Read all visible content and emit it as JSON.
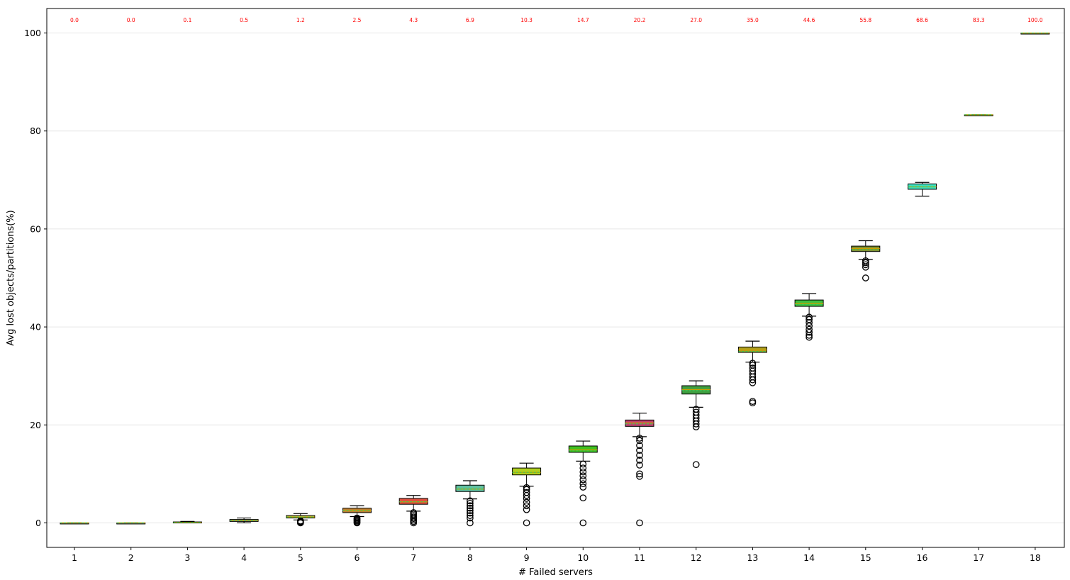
{
  "chart_data": {
    "type": "box",
    "xlabel": "# Failed servers",
    "ylabel": "Avg lost objects/partitions(%)",
    "ylim": [
      -5,
      105
    ],
    "yticks": [
      0,
      20,
      40,
      60,
      80,
      100
    ],
    "grid": "horizontal",
    "categories": [
      "1",
      "2",
      "3",
      "4",
      "5",
      "6",
      "7",
      "8",
      "9",
      "10",
      "11",
      "12",
      "13",
      "14",
      "15",
      "16",
      "17",
      "18"
    ],
    "mean_labels": [
      "0.0",
      "0.0",
      "0.1",
      "0.5",
      "1.2",
      "2.5",
      "4.3",
      "6.9",
      "10.3",
      "14.7",
      "20.2",
      "27.0",
      "35.0",
      "44.6",
      "55.8",
      "68.6",
      "83.3",
      "100.0"
    ],
    "boxes": [
      {
        "whislo": 0.0,
        "q1": 0.0,
        "med": 0.0,
        "mean": 0.0,
        "q3": 0.0,
        "whishi": 0.0,
        "fill": "#8a9a7a",
        "median_color": "#c8a000",
        "fliers": []
      },
      {
        "whislo": 0.0,
        "q1": 0.0,
        "med": 0.0,
        "mean": 0.0,
        "q3": 0.0,
        "whishi": 0.0,
        "fill": "#7aa0a8",
        "median_color": "#c8a000",
        "fliers": []
      },
      {
        "whislo": 0.0,
        "q1": 0.0,
        "med": 0.1,
        "mean": 0.1,
        "q3": 0.2,
        "whishi": 0.3,
        "fill": "#9a9a30",
        "median_color": "#c8a000",
        "fliers": []
      },
      {
        "whislo": 0.0,
        "q1": 0.3,
        "med": 0.5,
        "mean": 0.5,
        "q3": 0.7,
        "whishi": 1.0,
        "fill": "#c0a070",
        "median_color": "#c8a000",
        "fliers": []
      },
      {
        "whislo": 0.6,
        "q1": 1.0,
        "med": 1.2,
        "mean": 1.2,
        "q3": 1.5,
        "whishi": 1.9,
        "fill": "#d0c040",
        "median_color": "#c8a000",
        "fliers": [
          0.0,
          0.1,
          0.2,
          0.3,
          0.4
        ]
      },
      {
        "whislo": 1.3,
        "q1": 2.1,
        "med": 2.5,
        "mean": 2.5,
        "q3": 3.0,
        "whishi": 3.5,
        "fill": "#c08030",
        "median_color": "#c8a000",
        "fliers": [
          0.0,
          0.2,
          0.4,
          0.6,
          0.8,
          1.0
        ]
      },
      {
        "whislo": 2.4,
        "q1": 3.8,
        "med": 4.3,
        "mean": 4.3,
        "q3": 5.0,
        "whishi": 5.6,
        "fill": "#e05040",
        "median_color": "#c8a000",
        "fliers": [
          0.0,
          0.3,
          0.6,
          0.9,
          1.2,
          1.5,
          1.8,
          2.1
        ]
      },
      {
        "whislo": 4.9,
        "q1": 6.4,
        "med": 6.9,
        "mean": 6.9,
        "q3": 7.7,
        "whishi": 8.6,
        "fill": "#60c0a0",
        "median_color": "#c8a000",
        "fliers": [
          0.0,
          1.0,
          1.5,
          2.0,
          2.5,
          3.0,
          3.5,
          4.0,
          4.5
        ]
      },
      {
        "whislo": 7.5,
        "q1": 9.8,
        "med": 10.3,
        "mean": 10.3,
        "q3": 11.2,
        "whishi": 12.2,
        "fill": "#b0d020",
        "median_color": "#c8a000",
        "fliers": [
          0.0,
          2.7,
          3.5,
          4.2,
          5.0,
          5.6,
          6.2,
          6.8,
          7.2
        ]
      },
      {
        "whislo": 12.6,
        "q1": 14.4,
        "med": 14.9,
        "mean": 14.7,
        "q3": 15.7,
        "whishi": 16.7,
        "fill": "#40c020",
        "median_color": "#c8a000",
        "fliers": [
          0.0,
          5.1,
          7.3,
          8.0,
          8.8,
          9.6,
          10.4,
          11.2,
          12.0
        ]
      },
      {
        "whislo": 17.6,
        "q1": 19.7,
        "med": 20.4,
        "mean": 20.2,
        "q3": 21.0,
        "whishi": 22.4,
        "fill": "#c04070",
        "median_color": "#c8a000",
        "fliers": [
          0.0,
          9.5,
          10.0,
          11.8,
          12.8,
          13.8,
          14.8,
          15.8,
          16.8,
          17.3
        ]
      },
      {
        "whislo": 23.6,
        "q1": 26.3,
        "med": 27.2,
        "mean": 27.0,
        "q3": 28.0,
        "whishi": 29.0,
        "fill": "#40a040",
        "median_color": "#c8a000",
        "fliers": [
          11.9,
          19.6,
          20.2,
          20.8,
          21.4,
          22.0,
          22.6,
          23.2
        ]
      },
      {
        "whislo": 32.8,
        "q1": 34.8,
        "med": 35.3,
        "mean": 35.0,
        "q3": 35.9,
        "whishi": 37.1,
        "fill": "#b0a020",
        "median_color": "#c8a000",
        "fliers": [
          24.5,
          24.8,
          28.6,
          29.2,
          29.8,
          30.4,
          31.0,
          31.6,
          32.2,
          32.6
        ]
      },
      {
        "whislo": 42.2,
        "q1": 44.2,
        "med": 44.8,
        "mean": 44.6,
        "q3": 45.5,
        "whishi": 46.8,
        "fill": "#40c040",
        "median_color": "#c8a000",
        "fliers": [
          37.9,
          38.3,
          38.9,
          39.5,
          40.2,
          40.9,
          41.5,
          42.0
        ]
      },
      {
        "whislo": 53.8,
        "q1": 55.4,
        "med": 56.0,
        "mean": 55.8,
        "q3": 56.5,
        "whishi": 57.6,
        "fill": "#809030",
        "median_color": "#c8a000",
        "fliers": [
          50.0,
          52.2,
          52.7,
          53.1,
          53.5
        ]
      },
      {
        "whislo": 66.7,
        "q1": 68.1,
        "med": 68.6,
        "mean": 68.6,
        "q3": 69.2,
        "whishi": 69.5,
        "fill": "#40e0c0",
        "median_color": "#c8a000",
        "fliers": []
      },
      {
        "whislo": 83.3,
        "q1": 83.3,
        "med": 83.3,
        "mean": 83.3,
        "q3": 83.3,
        "whishi": 83.3,
        "fill": "#9aaa70",
        "median_color": "#c8a000",
        "fliers": []
      },
      {
        "whislo": 100.0,
        "q1": 100.0,
        "med": 100.0,
        "mean": 100.0,
        "q3": 100.0,
        "whishi": 100.0,
        "fill": "#8a9a7a",
        "median_color": "#c8a000",
        "fliers": []
      }
    ]
  }
}
